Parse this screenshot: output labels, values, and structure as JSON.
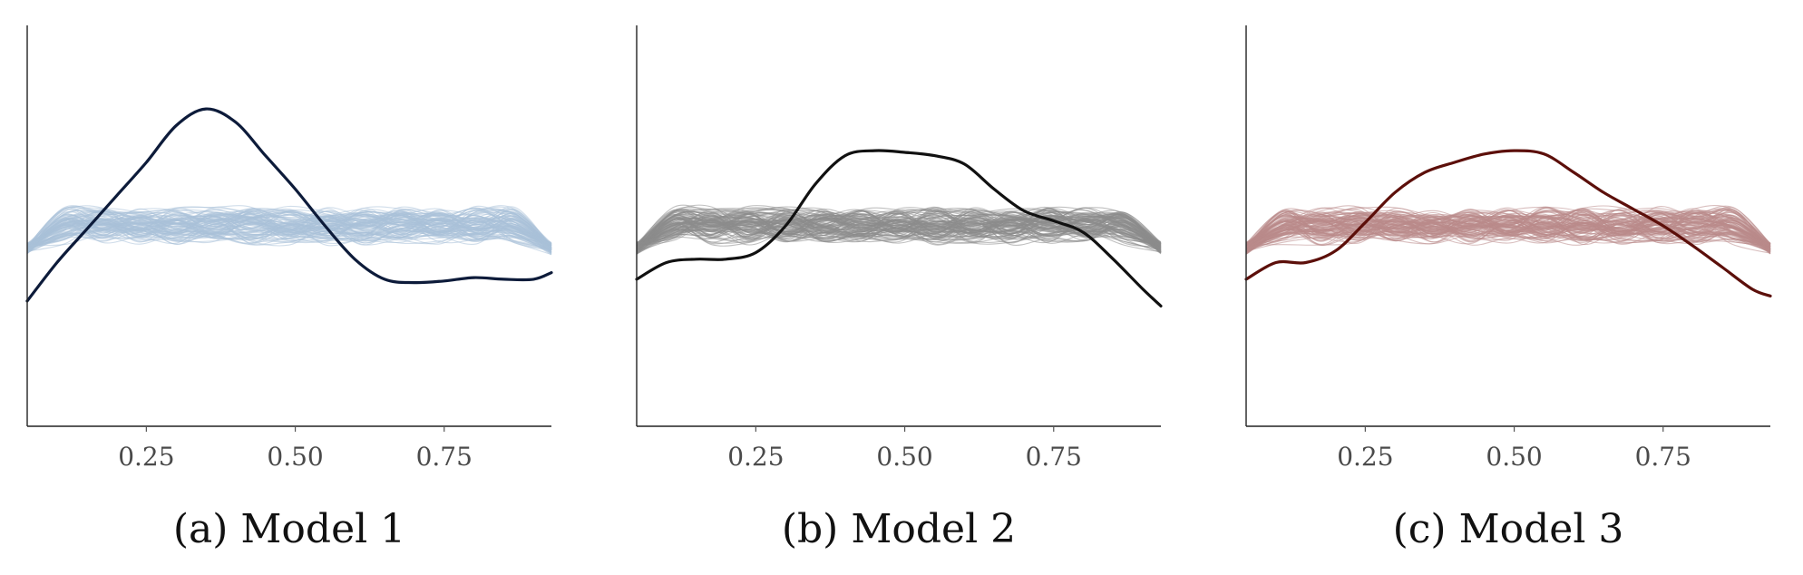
{
  "figure": {
    "panels": [
      {
        "caption": "(a) Model 1"
      },
      {
        "caption": "(b) Model 2"
      },
      {
        "caption": "(c) Model 3"
      }
    ]
  },
  "chart_data": [
    {
      "type": "line",
      "title": "",
      "xlabel": "",
      "ylabel": "",
      "caption": "(a) Model 1",
      "xlim": [
        0.05,
        0.93
      ],
      "ylim": [
        0,
        2.4
      ],
      "xticks": [
        "0.25",
        "0.50",
        "0.75"
      ],
      "xtick_values": [
        0.25,
        0.5,
        0.75
      ],
      "grid": false,
      "colors": {
        "replicates": "#a9c1d8",
        "observed": "#0d1b3a"
      },
      "replicate_series": {
        "count": 100,
        "approx_level": 1.2,
        "approx_band": [
          1.05,
          1.3
        ],
        "edge_level": 1.05
      },
      "series": [
        {
          "x": [
            0.05,
            0.1,
            0.15,
            0.2,
            0.25,
            0.3,
            0.35,
            0.4,
            0.45,
            0.5,
            0.55,
            0.6,
            0.65,
            0.7,
            0.75,
            0.8,
            0.85,
            0.9,
            0.93
          ],
          "y": [
            0.75,
            0.98,
            1.18,
            1.38,
            1.58,
            1.8,
            1.9,
            1.82,
            1.62,
            1.42,
            1.2,
            1.0,
            0.88,
            0.86,
            0.87,
            0.89,
            0.88,
            0.88,
            0.92
          ]
        }
      ]
    },
    {
      "type": "line",
      "title": "",
      "xlabel": "",
      "ylabel": "",
      "caption": "(b) Model 2",
      "xlim": [
        0.05,
        0.93
      ],
      "ylim": [
        0,
        2.4
      ],
      "xticks": [
        "0.25",
        "0.50",
        "0.75"
      ],
      "xtick_values": [
        0.25,
        0.5,
        0.75
      ],
      "grid": false,
      "colors": {
        "replicates": "#8c8c8c",
        "observed": "#111111"
      },
      "replicate_series": {
        "count": 100,
        "approx_level": 1.2,
        "approx_band": [
          1.05,
          1.3
        ],
        "edge_level": 1.05
      },
      "series": [
        {
          "x": [
            0.05,
            0.1,
            0.15,
            0.2,
            0.25,
            0.3,
            0.35,
            0.4,
            0.45,
            0.5,
            0.55,
            0.6,
            0.65,
            0.7,
            0.75,
            0.8,
            0.85,
            0.9,
            0.93
          ],
          "y": [
            0.88,
            0.98,
            1.0,
            1.0,
            1.04,
            1.2,
            1.45,
            1.62,
            1.65,
            1.64,
            1.62,
            1.57,
            1.42,
            1.29,
            1.23,
            1.16,
            1.0,
            0.82,
            0.72
          ]
        }
      ]
    },
    {
      "type": "line",
      "title": "",
      "xlabel": "",
      "ylabel": "",
      "caption": "(c) Model 3",
      "xlim": [
        0.05,
        0.93
      ],
      "ylim": [
        0,
        2.4
      ],
      "xticks": [
        "0.25",
        "0.50",
        "0.75"
      ],
      "xtick_values": [
        0.25,
        0.5,
        0.75
      ],
      "grid": false,
      "colors": {
        "replicates": "#b98a8a",
        "observed": "#5c0f0a"
      },
      "replicate_series": {
        "count": 100,
        "approx_level": 1.2,
        "approx_band": [
          1.05,
          1.3
        ],
        "edge_level": 1.05
      },
      "series": [
        {
          "x": [
            0.05,
            0.1,
            0.15,
            0.2,
            0.25,
            0.3,
            0.35,
            0.4,
            0.45,
            0.5,
            0.55,
            0.6,
            0.65,
            0.7,
            0.75,
            0.8,
            0.85,
            0.9,
            0.93
          ],
          "y": [
            0.88,
            0.98,
            0.98,
            1.05,
            1.22,
            1.4,
            1.52,
            1.58,
            1.63,
            1.65,
            1.63,
            1.52,
            1.4,
            1.3,
            1.2,
            1.08,
            0.95,
            0.82,
            0.78
          ]
        }
      ]
    }
  ]
}
